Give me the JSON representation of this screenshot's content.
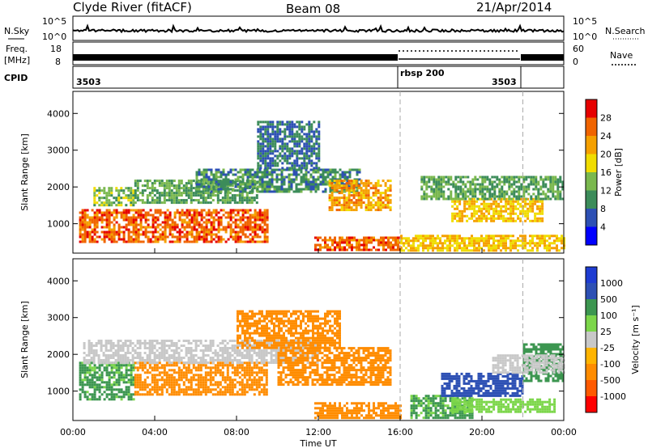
{
  "header": {
    "station": "Clyde River (fitACF)",
    "beam": "Beam 08",
    "date": "21/Apr/2014"
  },
  "strips": {
    "nsky_label": "N.Sky",
    "nsky_ticks": [
      "10^5",
      "10^0"
    ],
    "nsearch_label": "N.Search",
    "freq_label_1": "Freq.",
    "freq_label_2": "[MHz]",
    "freq_ticks": [
      "18",
      "8"
    ],
    "nave_label": "Nave",
    "nave_ticks": [
      "60",
      "0"
    ],
    "cpid_label": "CPID",
    "cpid_segments": [
      "3503",
      "rbsp 200",
      "3503"
    ],
    "cpid_boundaries_ut_hours": [
      16.0,
      22.0
    ]
  },
  "colors": {
    "power": [
      "#0000ff",
      "#2d50b4",
      "#3c8c5a",
      "#7ab84e",
      "#f0dc00",
      "#f5a000",
      "#f06400",
      "#e60000"
    ],
    "velocity": [
      "#ff0000",
      "#ff5a00",
      "#ff8c00",
      "#ffb400",
      "#c8c8c8",
      "#7cd64a",
      "#3c9650",
      "#2d50b4",
      "#1e3cd2"
    ]
  },
  "chart_data": [
    {
      "type": "heatmap",
      "panel": "power",
      "xlabel": "",
      "ylabel": "Slant Range [km]",
      "xlim": [
        0,
        24
      ],
      "ylim": [
        200,
        4600
      ],
      "y_ticks": [
        "1000",
        "2000",
        "3000",
        "4000"
      ],
      "x_ticks": [],
      "colorbar": {
        "label": "Power [dB]",
        "ticks": [
          "4",
          "8",
          "12",
          "16",
          "20",
          "24",
          "28"
        ],
        "range": [
          0,
          32
        ]
      },
      "regions": [
        {
          "x": [
            0.3,
            9.5
          ],
          "y": [
            500,
            1400
          ],
          "level": 26
        },
        {
          "x": [
            1.0,
            3.0
          ],
          "y": [
            1500,
            2000
          ],
          "level": 14
        },
        {
          "x": [
            3.0,
            9.0
          ],
          "y": [
            1600,
            2200
          ],
          "level": 12
        },
        {
          "x": [
            6.0,
            14.0
          ],
          "y": [
            1900,
            2500
          ],
          "level": 10
        },
        {
          "x": [
            9.0,
            12.0
          ],
          "y": [
            2500,
            3800
          ],
          "level": 8
        },
        {
          "x": [
            12.5,
            15.5
          ],
          "y": [
            1400,
            2200
          ],
          "level": 22
        },
        {
          "x": [
            11.8,
            16.0
          ],
          "y": [
            280,
            650
          ],
          "level": 26
        },
        {
          "x": [
            16.0,
            24.0
          ],
          "y": [
            300,
            700
          ],
          "level": 20
        },
        {
          "x": [
            18.5,
            23.0
          ],
          "y": [
            1100,
            1700
          ],
          "level": 20
        },
        {
          "x": [
            17.0,
            24.0
          ],
          "y": [
            1700,
            2300
          ],
          "level": 12
        }
      ]
    },
    {
      "type": "heatmap",
      "panel": "velocity",
      "xlabel": "Time UT",
      "ylabel": "Slant Range [km]",
      "xlim": [
        0,
        24
      ],
      "ylim": [
        200,
        4600
      ],
      "y_ticks": [
        "1000",
        "2000",
        "3000",
        "4000"
      ],
      "x_ticks": [
        "00:00",
        "04:00",
        "08:00",
        "12:00",
        "16:00",
        "20:00",
        "00:00"
      ],
      "colorbar": {
        "label": "Velocity [m s⁻¹]",
        "ticks": [
          "1000",
          "500",
          "100",
          "25",
          "-25",
          "-100",
          "-500",
          "-1000"
        ]
      },
      "regions": [
        {
          "x": [
            0.3,
            3.0
          ],
          "y": [
            800,
            1800
          ],
          "velocity": 120
        },
        {
          "x": [
            3.0,
            9.5
          ],
          "y": [
            900,
            1800
          ],
          "velocity": -150
        },
        {
          "x": [
            0.5,
            12.0
          ],
          "y": [
            1800,
            2400
          ],
          "velocity": 10
        },
        {
          "x": [
            8.0,
            13.0
          ],
          "y": [
            2200,
            3200
          ],
          "velocity": -200
        },
        {
          "x": [
            10.0,
            15.5
          ],
          "y": [
            1200,
            2200
          ],
          "velocity": -350
        },
        {
          "x": [
            11.8,
            16.0
          ],
          "y": [
            280,
            700
          ],
          "velocity": -200
        },
        {
          "x": [
            16.5,
            19.5
          ],
          "y": [
            300,
            900
          ],
          "velocity": 120
        },
        {
          "x": [
            18.5,
            23.5
          ],
          "y": [
            450,
            800
          ],
          "velocity": 60
        },
        {
          "x": [
            18.0,
            22.0
          ],
          "y": [
            900,
            1500
          ],
          "velocity": 700
        },
        {
          "x": [
            22.0,
            24.0
          ],
          "y": [
            1300,
            2300
          ],
          "velocity": 400
        },
        {
          "x": [
            20.5,
            24.0
          ],
          "y": [
            1500,
            2000
          ],
          "velocity": 0
        }
      ]
    }
  ]
}
